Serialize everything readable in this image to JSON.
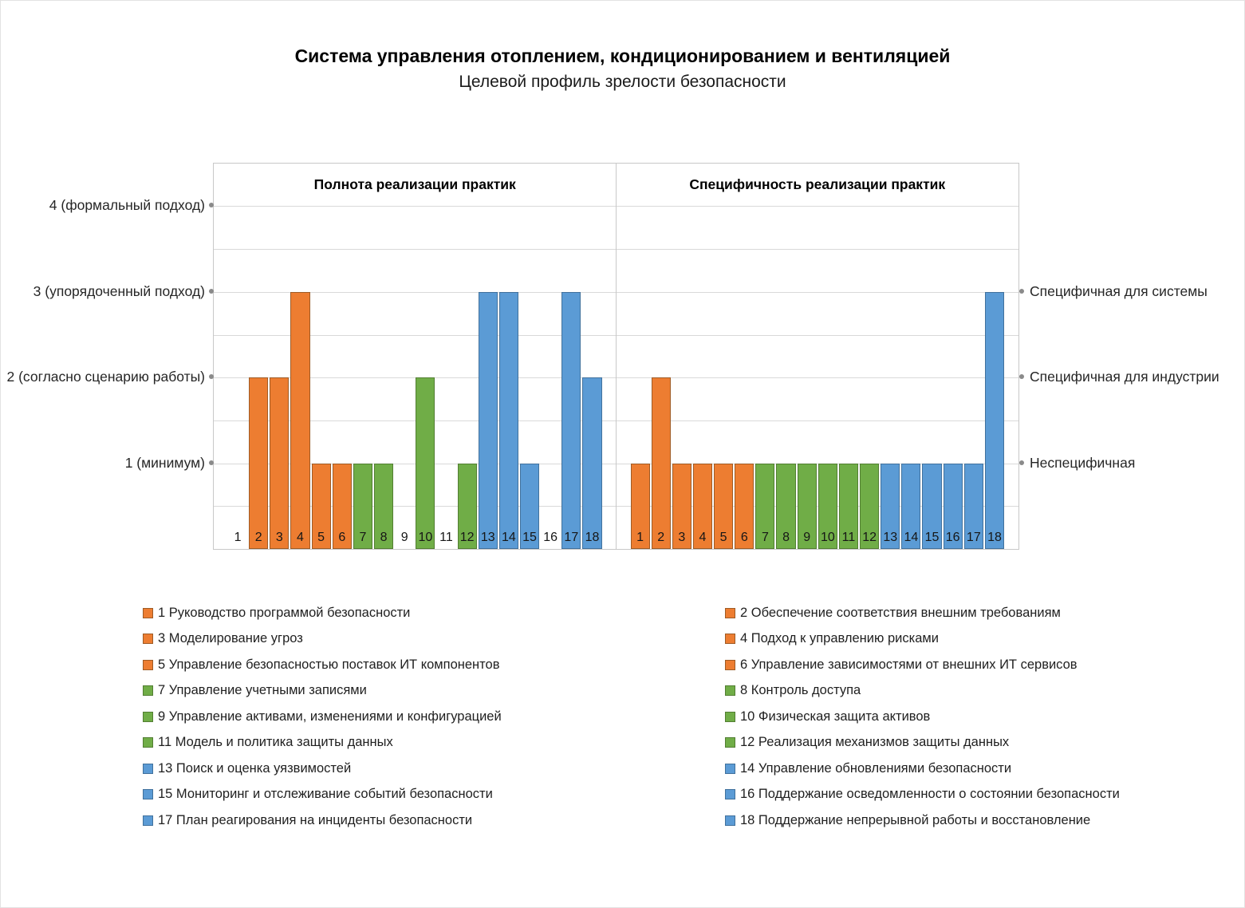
{
  "chart_data": {
    "type": "bar",
    "title": "Система управления отоплением, кондиционированием и вентиляцией",
    "subtitle": "Целевой профиль зрелости безопасности",
    "categories": [
      "1",
      "2",
      "3",
      "4",
      "5",
      "6",
      "7",
      "8",
      "9",
      "10",
      "11",
      "12",
      "13",
      "14",
      "15",
      "16",
      "17",
      "18"
    ],
    "category_colors": [
      "orange",
      "orange",
      "orange",
      "orange",
      "orange",
      "orange",
      "green",
      "green",
      "green",
      "green",
      "green",
      "green",
      "blue",
      "blue",
      "blue",
      "blue",
      "blue",
      "blue"
    ],
    "ylim": [
      0,
      4.5
    ],
    "grid_step": 0.5,
    "grid": true,
    "legend_position": "bottom",
    "panels": [
      {
        "title": "Полнота реализации практик",
        "values": [
          0,
          2,
          2,
          3,
          1,
          1,
          1,
          1,
          0,
          2,
          0,
          1,
          3,
          3,
          1,
          0,
          3,
          2
        ]
      },
      {
        "title": "Специфичность реализации практик",
        "values": [
          1,
          2,
          1,
          1,
          1,
          1,
          1,
          1,
          1,
          1,
          1,
          1,
          1,
          1,
          1,
          1,
          1,
          3
        ]
      }
    ],
    "left_axis_ticks": [
      {
        "value": 4,
        "label": "4 (формальный подход)"
      },
      {
        "value": 3,
        "label": "3 (упорядоченный подход)"
      },
      {
        "value": 2,
        "label": "2 (согласно сценарию работы)"
      },
      {
        "value": 1,
        "label": "1 (минимум)"
      }
    ],
    "right_axis_ticks": [
      {
        "value": 3,
        "label": "Специфичная для системы"
      },
      {
        "value": 2,
        "label": "Специфичная для индустрии"
      },
      {
        "value": 1,
        "label": "Неспецифичная"
      }
    ],
    "legend": [
      {
        "num": "1",
        "label": "Руководство программой безопасности",
        "color": "orange"
      },
      {
        "num": "2",
        "label": "Обеспечение соответствия внешним требованиям",
        "color": "orange"
      },
      {
        "num": "3",
        "label": "Моделирование угроз",
        "color": "orange"
      },
      {
        "num": "4",
        "label": "Подход к управлению рисками",
        "color": "orange"
      },
      {
        "num": "5",
        "label": "Управление безопасностью поставок ИТ компонентов",
        "color": "orange"
      },
      {
        "num": "6",
        "label": "Управление зависимостями от внешних ИТ сервисов",
        "color": "orange"
      },
      {
        "num": "7",
        "label": "Управление учетными записями",
        "color": "green"
      },
      {
        "num": "8",
        "label": "Контроль доступа",
        "color": "green"
      },
      {
        "num": "9",
        "label": "Управление активами, изменениями и конфигурацией",
        "color": "green"
      },
      {
        "num": "10",
        "label": "Физическая защита активов",
        "color": "green"
      },
      {
        "num": "11",
        "label": "Модель и политика защиты данных",
        "color": "green"
      },
      {
        "num": "12",
        "label": "Реализация механизмов защиты данных",
        "color": "green"
      },
      {
        "num": "13",
        "label": "Поиск и оценка уязвимостей",
        "color": "blue"
      },
      {
        "num": "14",
        "label": "Управление обновлениями безопасности",
        "color": "blue"
      },
      {
        "num": "15",
        "label": "Мониторинг и отслеживание событий безопасности",
        "color": "blue"
      },
      {
        "num": "16",
        "label": "Поддержание осведомленности о состоянии безопасности",
        "color": "blue"
      },
      {
        "num": "17",
        "label": "План реагирования на инциденты безопасности",
        "color": "blue"
      },
      {
        "num": "18",
        "label": "Поддержание непрерывной работы и восстановление",
        "color": "blue"
      }
    ],
    "colors": {
      "orange": {
        "fill": "#ED7D31",
        "border": "#9E5B25"
      },
      "green": {
        "fill": "#70AD47",
        "border": "#527E32"
      },
      "blue": {
        "fill": "#5B9BD5",
        "border": "#41719C"
      },
      "gridline": "#D9D9D9",
      "plot_border": "#C8C8C8",
      "tick_dot": "#8A8A8A"
    }
  }
}
